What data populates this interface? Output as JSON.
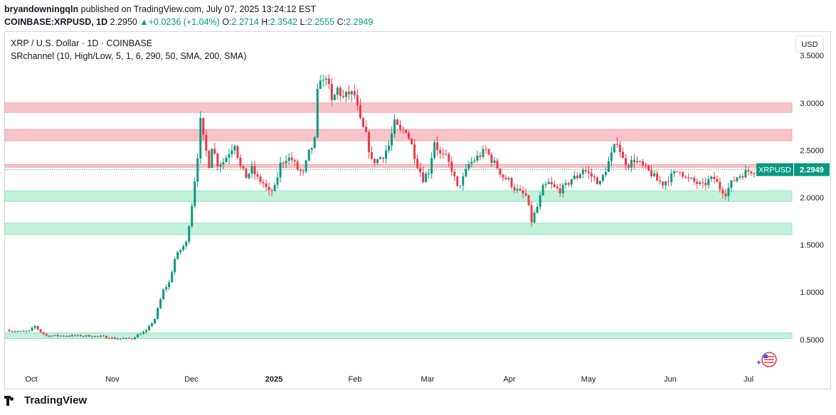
{
  "header": {
    "author": "bryandowningqln",
    "published": " published on TradingView.com, July 07, 2025 13:24:12 EST",
    "symbol_line": "COINBASE:XRPUSD, 1D",
    "last": "2.2950",
    "change": "+0.0236 (+1.04%)",
    "o_label": "O:",
    "o": "2.2714",
    "h_label": "H:",
    "h": "2.3542",
    "l_label": "L:",
    "l": "2.2555",
    "c_label": "C:",
    "c": "2.2949"
  },
  "legend": {
    "title": "XRP / U.S. Dollar · 1D · COINBASE",
    "indicator": "SRchannel (10, High/Low, 5, 1, 6, 290, 50, SMA, 200, SMA)"
  },
  "currency_button": "USD",
  "footer": {
    "brand": "TradingView"
  },
  "colors": {
    "up": "#089981",
    "down": "#f23645",
    "resistance_fill": "#f7c5c8",
    "resistance_line": "#f5a3a9",
    "support_fill": "#c3f2dc",
    "support_line": "#8fe3bf",
    "price_label_bg": "#089981"
  },
  "chart_data": {
    "type": "candlestick",
    "symbol": "XRPUSD",
    "last_price": 2.2949,
    "y_ticks": [
      "3.5000",
      "3.0000",
      "2.5000",
      "2.0000",
      "1.5000",
      "1.0000",
      "0.5000"
    ],
    "y_tick_values": [
      3.5,
      3.0,
      2.5,
      2.0,
      1.5,
      1.0,
      0.5
    ],
    "ylim": [
      0.12,
      3.6
    ],
    "x_labels": [
      "Oct",
      "Nov",
      "Dec",
      "2025",
      "Feb",
      "Mar",
      "Apr",
      "May",
      "Jun",
      "Jul"
    ],
    "x_label_bold": "2025",
    "resistance_zones": [
      [
        2.9,
        3.0
      ],
      [
        2.6,
        2.72
      ],
      [
        2.32,
        2.35
      ]
    ],
    "support_zones": [
      [
        1.96,
        2.07
      ],
      [
        1.61,
        1.73
      ],
      [
        0.51,
        0.57
      ]
    ],
    "price_path": [
      [
        0,
        0.6
      ],
      [
        3,
        0.59
      ],
      [
        6,
        0.58
      ],
      [
        8,
        0.59
      ],
      [
        10,
        0.64
      ],
      [
        12,
        0.58
      ],
      [
        14,
        0.54
      ],
      [
        20,
        0.54
      ],
      [
        28,
        0.54
      ],
      [
        34,
        0.53
      ],
      [
        38,
        0.51
      ],
      [
        44,
        0.51
      ],
      [
        46,
        0.55
      ],
      [
        49,
        0.59
      ],
      [
        52,
        0.72
      ],
      [
        55,
        1.02
      ],
      [
        57,
        1.1
      ],
      [
        59,
        1.35
      ],
      [
        61,
        1.45
      ],
      [
        63,
        1.52
      ],
      [
        65,
        1.93
      ],
      [
        67,
        2.45
      ],
      [
        68,
        2.8
      ],
      [
        69,
        2.62
      ],
      [
        71,
        2.35
      ],
      [
        72,
        2.55
      ],
      [
        74,
        2.36
      ],
      [
        76,
        2.38
      ],
      [
        78,
        2.48
      ],
      [
        80,
        2.58
      ],
      [
        82,
        2.32
      ],
      [
        84,
        2.22
      ],
      [
        86,
        2.3
      ],
      [
        88,
        2.2
      ],
      [
        90,
        2.15
      ],
      [
        92,
        2.05
      ],
      [
        94,
        2.1
      ],
      [
        96,
        2.35
      ],
      [
        98,
        2.42
      ],
      [
        100,
        2.4
      ],
      [
        102,
        2.3
      ],
      [
        104,
        2.25
      ],
      [
        106,
        2.47
      ],
      [
        108,
        2.6
      ],
      [
        109,
        3.1
      ],
      [
        110,
        3.28
      ],
      [
        111,
        3.21
      ],
      [
        112,
        3.3
      ],
      [
        114,
        3.0
      ],
      [
        116,
        3.15
      ],
      [
        118,
        3.05
      ],
      [
        120,
        3.1
      ],
      [
        122,
        3.08
      ],
      [
        124,
        2.8
      ],
      [
        126,
        2.65
      ],
      [
        128,
        2.38
      ],
      [
        130,
        2.4
      ],
      [
        132,
        2.45
      ],
      [
        134,
        2.55
      ],
      [
        136,
        2.78
      ],
      [
        138,
        2.7
      ],
      [
        140,
        2.72
      ],
      [
        142,
        2.55
      ],
      [
        144,
        2.35
      ],
      [
        146,
        2.2
      ],
      [
        148,
        2.28
      ],
      [
        150,
        2.6
      ],
      [
        152,
        2.45
      ],
      [
        154,
        2.42
      ],
      [
        156,
        2.3
      ],
      [
        158,
        2.1
      ],
      [
        160,
        2.2
      ],
      [
        162,
        2.35
      ],
      [
        164,
        2.4
      ],
      [
        166,
        2.45
      ],
      [
        168,
        2.5
      ],
      [
        170,
        2.4
      ],
      [
        172,
        2.32
      ],
      [
        174,
        2.22
      ],
      [
        176,
        2.18
      ],
      [
        178,
        2.1
      ],
      [
        180,
        2.05
      ],
      [
        182,
        2.02
      ],
      [
        184,
        1.75
      ],
      [
        186,
        1.9
      ],
      [
        188,
        2.1
      ],
      [
        190,
        2.15
      ],
      [
        192,
        2.1
      ],
      [
        194,
        2.08
      ],
      [
        196,
        2.12
      ],
      [
        198,
        2.2
      ],
      [
        200,
        2.22
      ],
      [
        202,
        2.3
      ],
      [
        204,
        2.25
      ],
      [
        206,
        2.2
      ],
      [
        208,
        2.15
      ],
      [
        210,
        2.3
      ],
      [
        212,
        2.45
      ],
      [
        214,
        2.6
      ],
      [
        216,
        2.4
      ],
      [
        218,
        2.35
      ],
      [
        220,
        2.4
      ],
      [
        222,
        2.35
      ],
      [
        224,
        2.3
      ],
      [
        226,
        2.25
      ],
      [
        228,
        2.18
      ],
      [
        230,
        2.15
      ],
      [
        232,
        2.2
      ],
      [
        234,
        2.25
      ],
      [
        236,
        2.3
      ],
      [
        238,
        2.2
      ],
      [
        240,
        2.18
      ],
      [
        242,
        2.15
      ],
      [
        244,
        2.12
      ],
      [
        246,
        2.18
      ],
      [
        248,
        2.2
      ],
      [
        250,
        2.1
      ],
      [
        252,
        2.05
      ],
      [
        254,
        2.15
      ],
      [
        256,
        2.22
      ],
      [
        258,
        2.25
      ],
      [
        260,
        2.28
      ],
      [
        262,
        2.29
      ]
    ]
  }
}
